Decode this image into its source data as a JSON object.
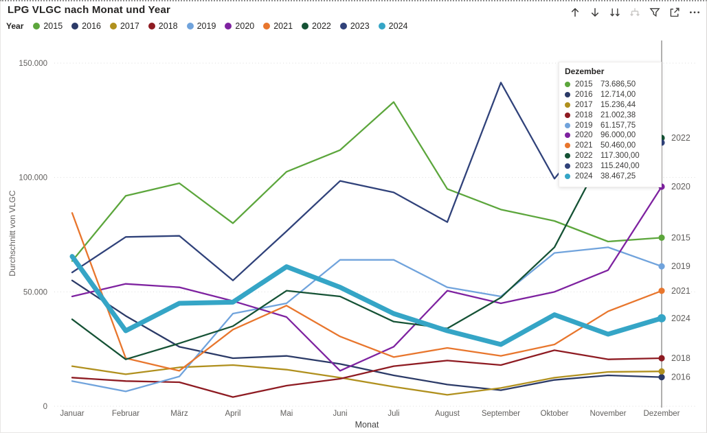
{
  "title": "LPG VLGC nach Monat und Year",
  "toolbar": {
    "icons": [
      {
        "name": "drill-up-icon",
        "enabled": true
      },
      {
        "name": "drill-down-icon",
        "enabled": true
      },
      {
        "name": "go-to-next-level-icon",
        "enabled": true
      },
      {
        "name": "expand-next-level-icon",
        "enabled": false
      },
      {
        "name": "filter-icon",
        "enabled": true
      },
      {
        "name": "focus-mode-icon",
        "enabled": true
      },
      {
        "name": "more-options-icon",
        "enabled": true
      }
    ]
  },
  "legend": {
    "label": "Year",
    "items": [
      {
        "label": "2015",
        "color": "#5CA63C"
      },
      {
        "label": "2016",
        "color": "#2B3A67"
      },
      {
        "label": "2017",
        "color": "#B0901E"
      },
      {
        "label": "2018",
        "color": "#8E1B22"
      },
      {
        "label": "2019",
        "color": "#70A3DC"
      },
      {
        "label": "2020",
        "color": "#7E22A0"
      },
      {
        "label": "2021",
        "color": "#E8762D"
      },
      {
        "label": "2022",
        "color": "#155235"
      },
      {
        "label": "2023",
        "color": "#30427A"
      },
      {
        "label": "2024",
        "color": "#35A5C6"
      }
    ]
  },
  "y_axis": {
    "title": "Durchschnitt von VLGC",
    "ticks": [
      {
        "value": 0,
        "label": "0"
      },
      {
        "value": 50000,
        "label": "50.000"
      },
      {
        "value": 100000,
        "label": "100.000"
      },
      {
        "value": 150000,
        "label": "150.000"
      }
    ]
  },
  "x_axis": {
    "title": "Monat"
  },
  "tooltip": {
    "header": "Dezember",
    "rows": [
      {
        "year": "2015",
        "color": "#5CA63C",
        "value": "73.686,50"
      },
      {
        "year": "2016",
        "color": "#2B3A67",
        "value": "12.714,00"
      },
      {
        "year": "2017",
        "color": "#B0901E",
        "value": "15.236,44"
      },
      {
        "year": "2018",
        "color": "#8E1B22",
        "value": "21.002,38"
      },
      {
        "year": "2019",
        "color": "#70A3DC",
        "value": "61.157,75"
      },
      {
        "year": "2020",
        "color": "#7E22A0",
        "value": "96.000,00"
      },
      {
        "year": "2021",
        "color": "#E8762D",
        "value": "50.460,00"
      },
      {
        "year": "2022",
        "color": "#155235",
        "value": "117.300,00"
      },
      {
        "year": "2023",
        "color": "#30427A",
        "value": "115.240,00"
      },
      {
        "year": "2024",
        "color": "#35A5C6",
        "value": "38.467,25"
      }
    ]
  },
  "right_labels": [
    "2022",
    "2020",
    "2015",
    "2019",
    "2021",
    "2024",
    "2018",
    "2016"
  ],
  "chart_data": {
    "type": "line",
    "x": [
      "Januar",
      "Februar",
      "März",
      "April",
      "Mai",
      "Juni",
      "Juli",
      "August",
      "September",
      "Oktober",
      "November",
      "Dezember"
    ],
    "xlabel": "Monat",
    "ylabel": "Durchschnitt von VLGC",
    "ylim": [
      0,
      150000
    ],
    "grid": true,
    "legend_position": "top",
    "highlight_x": "Dezember",
    "series": [
      {
        "name": "2015",
        "color": "#5CA63C",
        "line_width": 2.3,
        "values": [
          63500,
          92000,
          97500,
          80000,
          102500,
          112000,
          133000,
          95000,
          86000,
          81000,
          72000,
          73686.5
        ]
      },
      {
        "name": "2016",
        "color": "#2B3A67",
        "line_width": 2.3,
        "values": [
          55000,
          39500,
          26000,
          21000,
          22000,
          18500,
          13500,
          9500,
          7000,
          11500,
          13500,
          12714
        ]
      },
      {
        "name": "2017",
        "color": "#B0901E",
        "line_width": 2.3,
        "values": [
          17500,
          14000,
          17000,
          18000,
          16000,
          12500,
          8500,
          5000,
          8000,
          12500,
          15000,
          15236.44
        ]
      },
      {
        "name": "2018",
        "color": "#8E1B22",
        "line_width": 2.3,
        "values": [
          12500,
          11000,
          10500,
          4000,
          9000,
          12000,
          17500,
          20000,
          18000,
          24500,
          20500,
          21002.38
        ]
      },
      {
        "name": "2019",
        "color": "#70A3DC",
        "line_width": 2.3,
        "values": [
          11000,
          6500,
          13000,
          40500,
          45000,
          64000,
          64000,
          52000,
          48000,
          67000,
          69500,
          61157.75
        ]
      },
      {
        "name": "2020",
        "color": "#7E22A0",
        "line_width": 2.3,
        "values": [
          48000,
          53500,
          52000,
          46000,
          39000,
          15500,
          26000,
          50500,
          45000,
          50000,
          59500,
          96000
        ]
      },
      {
        "name": "2021",
        "color": "#E8762D",
        "line_width": 2.3,
        "values": [
          84500,
          21000,
          15500,
          33500,
          44000,
          30500,
          21500,
          25500,
          22000,
          27000,
          41500,
          50460
        ]
      },
      {
        "name": "2022",
        "color": "#155235",
        "line_width": 2.3,
        "values": [
          38000,
          20500,
          27500,
          35000,
          50500,
          48000,
          37000,
          34000,
          47500,
          69500,
          114000,
          117300
        ]
      },
      {
        "name": "2023",
        "color": "#30427A",
        "line_width": 2.3,
        "values": [
          58500,
          74000,
          74500,
          55000,
          76500,
          98500,
          93500,
          80500,
          141500,
          99500,
          128000,
          115240
        ]
      },
      {
        "name": "2024",
        "color": "#35A5C6",
        "line_width": 7,
        "values": [
          65500,
          33000,
          45000,
          45500,
          61000,
          52000,
          40500,
          33000,
          27000,
          40000,
          31500,
          38467.25
        ]
      }
    ]
  }
}
